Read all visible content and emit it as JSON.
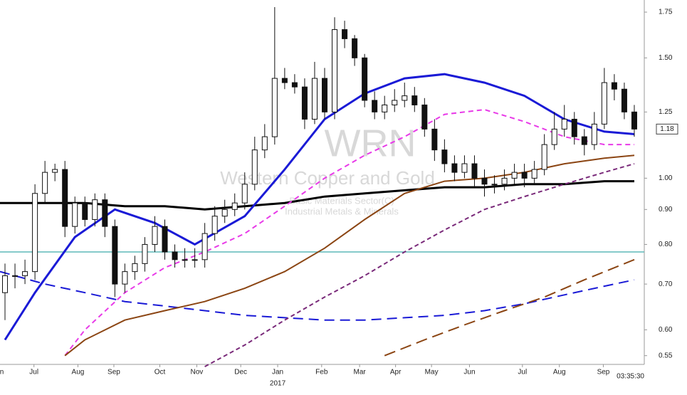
{
  "chart_data": {
    "type": "candlestick",
    "watermark": {
      "symbol": "WRN",
      "name": "Western Copper and Gold",
      "sector": "Basic Materials Sector(C)",
      "industry": "Industrial Metals & Minerals"
    },
    "log_scale": true,
    "xlim": [
      -0.5,
      64
    ],
    "xticks": [
      {
        "value": -0.7,
        "label": "Jun"
      },
      {
        "value": 2.9,
        "label": "Jul"
      },
      {
        "value": 7.3,
        "label": "Aug"
      },
      {
        "value": 10.9,
        "label": "Sep"
      },
      {
        "value": 15.5,
        "label": "Oct"
      },
      {
        "value": 19.2,
        "label": "Nov"
      },
      {
        "value": 23.6,
        "label": "Dec"
      },
      {
        "value": 27.3,
        "label": "Jan"
      },
      {
        "value": 31.7,
        "label": "Feb"
      },
      {
        "value": 35.5,
        "label": "Mar"
      },
      {
        "value": 39.1,
        "label": "Apr"
      },
      {
        "value": 42.7,
        "label": "May"
      },
      {
        "value": 46.5,
        "label": "Jun"
      },
      {
        "value": 51.8,
        "label": "Jul"
      },
      {
        "value": 55.5,
        "label": "Aug"
      },
      {
        "value": 59.9,
        "label": "Sep"
      }
    ],
    "year_label": {
      "value": 27.3,
      "label": "2017"
    },
    "ylim": [
      0.534,
      1.823
    ],
    "yticks": [
      0.55,
      {
        "value": 0.6,
        "label": "0.60"
      },
      {
        "value": 0.7,
        "label": "0.70"
      },
      {
        "value": 0.8,
        "label": "0.80"
      },
      {
        "value": 0.9,
        "label": "0.90"
      },
      {
        "value": 1,
        "label": "1.00"
      },
      1.25,
      {
        "value": 1.5,
        "label": "1.50"
      },
      1.75
    ],
    "last_price": 1.18,
    "time": "03:35:30",
    "reference_line": {
      "value": 0.78,
      "color": "#5fb8b8"
    },
    "candles": {
      "open": [
        0.68,
        0.72,
        0.72,
        0.73,
        0.95,
        1.02,
        1.03,
        0.85,
        0.92,
        0.87,
        0.93,
        0.85,
        0.7,
        0.73,
        0.75,
        0.8,
        0.85,
        0.78,
        0.76,
        0.76,
        0.76,
        0.83,
        0.88,
        0.9,
        0.92,
        0.98,
        1.1,
        1.15,
        1.4,
        1.38,
        1.36,
        1.22,
        1.4,
        1.25,
        1.65,
        1.6,
        1.5,
        1.3,
        1.25,
        1.28,
        1.3,
        1.32,
        1.28,
        1.18,
        1.1,
        1.05,
        1.02,
        1.05,
        1.0,
        0.98,
        0.98,
        1.0,
        1.02,
        1.0,
        1.03,
        1.12,
        1.18,
        1.22,
        1.15,
        1.12,
        1.2,
        1.38,
        1.35,
        1.25
      ],
      "high": [
        0.75,
        0.75,
        0.76,
        0.98,
        1.06,
        1.05,
        1.06,
        0.94,
        0.94,
        0.95,
        0.95,
        0.87,
        0.75,
        0.77,
        0.82,
        0.88,
        0.87,
        0.8,
        0.79,
        0.79,
        0.86,
        0.91,
        0.93,
        0.95,
        1.02,
        1.15,
        1.2,
        1.78,
        1.45,
        1.42,
        1.4,
        1.48,
        1.45,
        1.72,
        1.7,
        1.62,
        1.52,
        1.34,
        1.32,
        1.35,
        1.38,
        1.36,
        1.31,
        1.22,
        1.14,
        1.08,
        1.08,
        1.08,
        1.03,
        1.01,
        1.03,
        1.05,
        1.05,
        1.06,
        1.16,
        1.25,
        1.28,
        1.25,
        1.18,
        1.25,
        1.45,
        1.42,
        1.38,
        1.28
      ],
      "low": [
        0.62,
        0.69,
        0.7,
        0.71,
        0.92,
        0.99,
        0.82,
        0.83,
        0.85,
        0.85,
        0.82,
        0.67,
        0.68,
        0.71,
        0.73,
        0.78,
        0.76,
        0.74,
        0.74,
        0.74,
        0.74,
        0.81,
        0.86,
        0.88,
        0.9,
        0.96,
        1.07,
        1.12,
        1.35,
        1.33,
        1.18,
        1.2,
        1.22,
        1.22,
        1.55,
        1.46,
        1.27,
        1.22,
        1.22,
        1.25,
        1.27,
        1.25,
        1.15,
        1.06,
        1.02,
        0.99,
        1.0,
        0.97,
        0.94,
        0.95,
        0.96,
        0.98,
        0.97,
        0.98,
        1.01,
        1.1,
        1.15,
        1.12,
        1.08,
        1.1,
        1.18,
        1.3,
        1.22,
        1.15
      ],
      "close": [
        0.72,
        0.72,
        0.73,
        0.95,
        1.02,
        1.03,
        0.85,
        0.92,
        0.87,
        0.93,
        0.85,
        0.7,
        0.73,
        0.75,
        0.8,
        0.85,
        0.78,
        0.76,
        0.76,
        0.76,
        0.83,
        0.88,
        0.9,
        0.92,
        0.98,
        1.1,
        1.15,
        1.4,
        1.38,
        1.36,
        1.22,
        1.4,
        1.25,
        1.65,
        1.6,
        1.5,
        1.3,
        1.25,
        1.28,
        1.3,
        1.32,
        1.28,
        1.18,
        1.1,
        1.05,
        1.02,
        1.05,
        1.0,
        0.98,
        0.98,
        1.0,
        1.02,
        1.0,
        1.03,
        1.12,
        1.18,
        1.22,
        1.15,
        1.12,
        1.2,
        1.38,
        1.35,
        1.25,
        1.18
      ]
    },
    "series": [
      {
        "color": "#000000",
        "width": 3,
        "dash": "",
        "x": [
          -0.5,
          4,
          8,
          12,
          16,
          20,
          24,
          28,
          32,
          36,
          40,
          44,
          48,
          52,
          56,
          60,
          63
        ],
        "values": [
          0.92,
          0.92,
          0.92,
          0.91,
          0.91,
          0.9,
          0.91,
          0.92,
          0.94,
          0.95,
          0.96,
          0.97,
          0.97,
          0.98,
          0.98,
          0.99,
          0.99
        ]
      },
      {
        "color": "#1a1ad6",
        "width": 2,
        "dash": "14,8",
        "x": [
          -0.5,
          4,
          8,
          12,
          16,
          20,
          24,
          28,
          32,
          36,
          40,
          44,
          48,
          52,
          56,
          60,
          63
        ],
        "values": [
          0.73,
          0.7,
          0.68,
          0.66,
          0.65,
          0.64,
          0.63,
          0.625,
          0.62,
          0.62,
          0.625,
          0.63,
          0.64,
          0.655,
          0.675,
          0.695,
          0.71
        ]
      },
      {
        "color": "#e83ae8",
        "width": 2,
        "dash": "7,5",
        "x": [
          6,
          8,
          12,
          16,
          20,
          24,
          28,
          32,
          36,
          40,
          44,
          48,
          52,
          56,
          60,
          63
        ],
        "values": [
          0.55,
          0.6,
          0.68,
          0.74,
          0.78,
          0.83,
          0.91,
          1.0,
          1.08,
          1.15,
          1.24,
          1.26,
          1.21,
          1.15,
          1.12,
          1.12
        ]
      },
      {
        "color": "#1a1ad6",
        "width": 3,
        "dash": "",
        "x": [
          0,
          3,
          7,
          11,
          15,
          19,
          24,
          28,
          32,
          36,
          40,
          44,
          48,
          52,
          56,
          60,
          63
        ],
        "values": [
          0.58,
          0.68,
          0.82,
          0.9,
          0.86,
          0.8,
          0.88,
          1.03,
          1.22,
          1.33,
          1.4,
          1.42,
          1.38,
          1.32,
          1.22,
          1.17,
          1.16
        ]
      },
      {
        "color": "#7a2a7a",
        "width": 2,
        "dash": "6,4",
        "x": [
          20,
          24,
          28,
          32,
          36,
          40,
          44,
          48,
          52,
          56,
          60,
          63
        ],
        "values": [
          0.53,
          0.57,
          0.62,
          0.67,
          0.72,
          0.78,
          0.84,
          0.9,
          0.94,
          0.98,
          1.02,
          1.05
        ]
      },
      {
        "color": "#8b4513",
        "width": 2,
        "dash": "",
        "x": [
          6,
          8,
          12,
          16,
          20,
          24,
          28,
          32,
          36,
          40,
          44,
          48,
          52,
          56,
          60,
          63
        ],
        "values": [
          0.55,
          0.58,
          0.62,
          0.64,
          0.66,
          0.69,
          0.73,
          0.79,
          0.87,
          0.95,
          0.99,
          1.0,
          1.02,
          1.05,
          1.07,
          1.08
        ]
      },
      {
        "color": "#8b4513",
        "width": 2,
        "dash": "16,8",
        "x": [
          38,
          42,
          46,
          50,
          54,
          58,
          63
        ],
        "values": [
          0.55,
          0.58,
          0.61,
          0.64,
          0.67,
          0.71,
          0.76
        ]
      }
    ]
  }
}
